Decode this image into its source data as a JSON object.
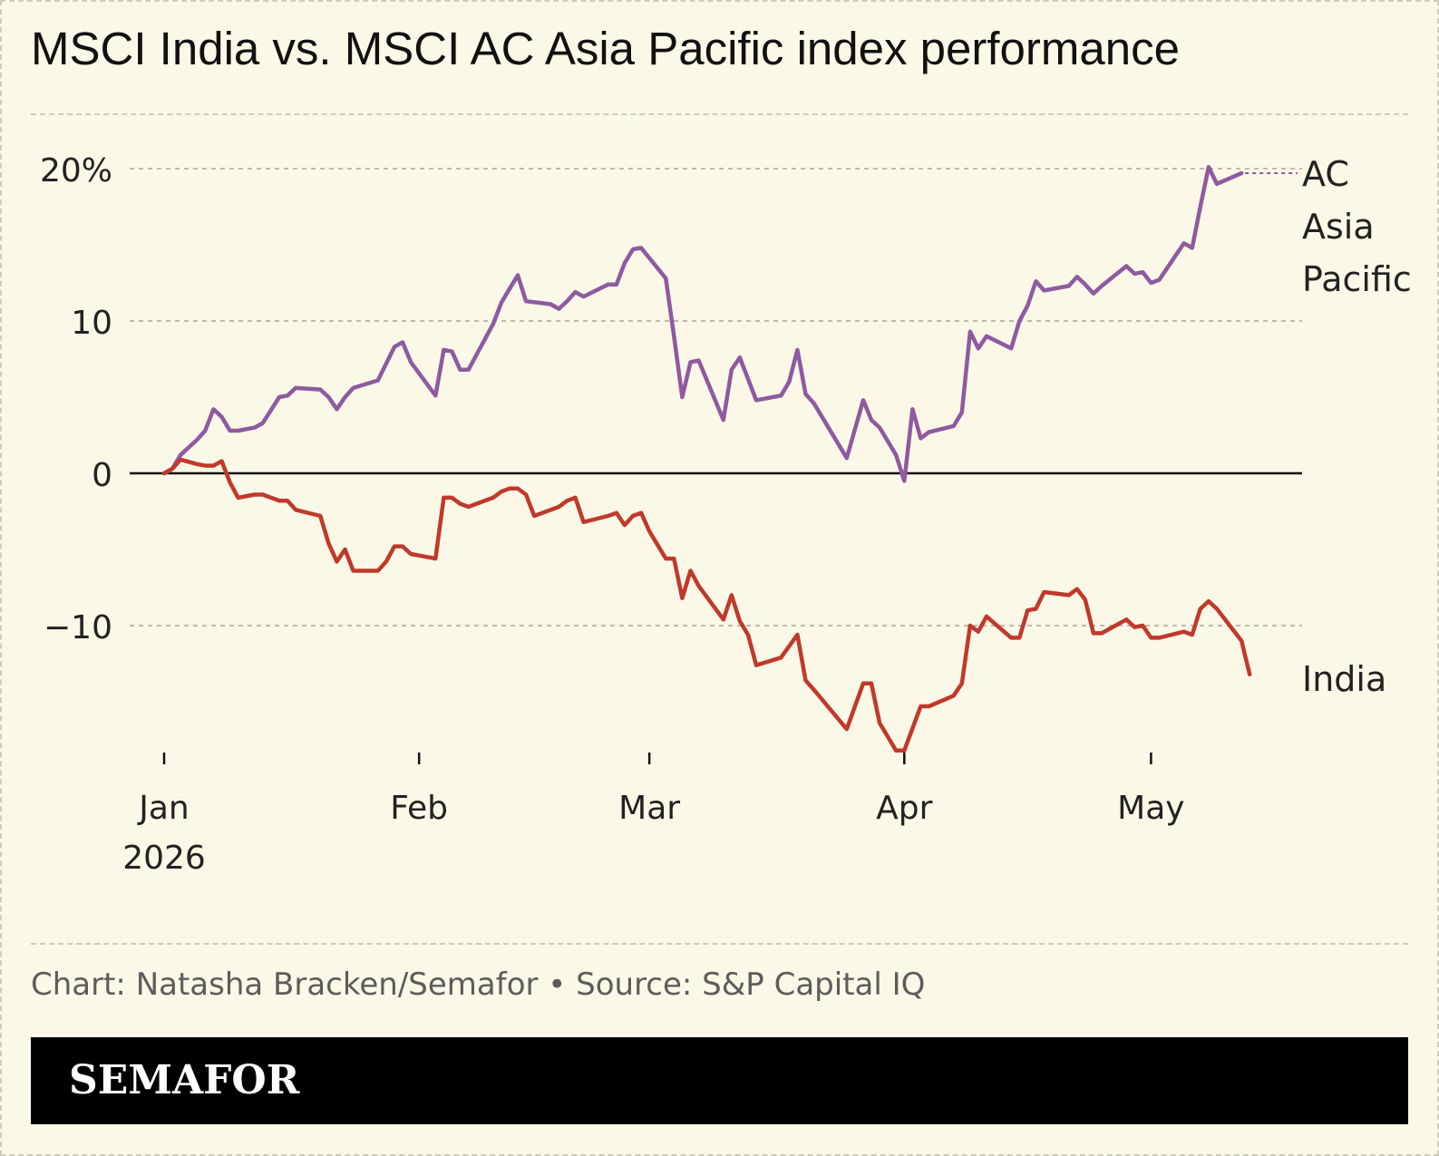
{
  "title": "MSCI India vs. MSCI AC Asia Pacific index performance",
  "footer": {
    "credit": "Chart: Natasha Bracken/Semafor • Source: S&P Capital IQ"
  },
  "brand": {
    "logo_text": "SEMAFOR"
  },
  "colors": {
    "background": "#fbf8e7",
    "india": "#c0392b",
    "ac_asia_pacific": "#8e5aa0"
  },
  "chart_data": {
    "type": "line",
    "title": "MSCI India vs. MSCI AC Asia Pacific index performance",
    "xlabel": "",
    "ylabel": "",
    "x_ticks": [
      {
        "date": "2026-01-01",
        "label": [
          "Jan",
          "2026"
        ]
      },
      {
        "date": "2026-02-01",
        "label": [
          "Feb"
        ]
      },
      {
        "date": "2026-03-01",
        "label": [
          "Mar"
        ]
      },
      {
        "date": "2026-04-01",
        "label": [
          "Apr"
        ]
      },
      {
        "date": "2026-05-01",
        "label": [
          "May"
        ]
      }
    ],
    "y_ticks": [
      {
        "value": 20,
        "label": "20%"
      },
      {
        "value": 10,
        "label": "10"
      },
      {
        "value": 0,
        "label": "0"
      },
      {
        "value": -10,
        "label": "−10"
      }
    ],
    "xlim": [
      "2025-12-31",
      "2026-05-14"
    ],
    "ylim": [
      -20,
      22
    ],
    "grid": true,
    "zero_line": true,
    "series": [
      {
        "name": "AC Asia Pacific",
        "color": "#8e5aa0",
        "label": [
          "AC",
          "Asia",
          "Pacific"
        ],
        "points": [
          [
            "2026-01-01",
            0.0
          ],
          [
            "2026-01-02",
            0.3
          ],
          [
            "2026-01-03",
            1.2
          ],
          [
            "2026-01-05",
            2.2
          ],
          [
            "2026-01-06",
            2.8
          ],
          [
            "2026-01-07",
            4.2
          ],
          [
            "2026-01-08",
            3.7
          ],
          [
            "2026-01-09",
            2.8
          ],
          [
            "2026-01-10",
            2.8
          ],
          [
            "2026-01-12",
            3.0
          ],
          [
            "2026-01-13",
            3.3
          ],
          [
            "2026-01-15",
            5.0
          ],
          [
            "2026-01-16",
            5.1
          ],
          [
            "2026-01-17",
            5.6
          ],
          [
            "2026-01-20",
            5.5
          ],
          [
            "2026-01-21",
            5.0
          ],
          [
            "2026-01-22",
            4.2
          ],
          [
            "2026-01-23",
            5.0
          ],
          [
            "2026-01-24",
            5.6
          ],
          [
            "2026-01-27",
            6.1
          ],
          [
            "2026-01-28",
            7.2
          ],
          [
            "2026-01-29",
            8.3
          ],
          [
            "2026-01-30",
            8.6
          ],
          [
            "2026-01-31",
            7.3
          ],
          [
            "2026-02-03",
            5.1
          ],
          [
            "2026-02-04",
            8.1
          ],
          [
            "2026-02-05",
            8.0
          ],
          [
            "2026-02-06",
            6.8
          ],
          [
            "2026-02-07",
            6.8
          ],
          [
            "2026-02-10",
            9.8
          ],
          [
            "2026-02-11",
            11.2
          ],
          [
            "2026-02-12",
            12.1
          ],
          [
            "2026-02-13",
            13.0
          ],
          [
            "2026-02-14",
            11.3
          ],
          [
            "2026-02-17",
            11.1
          ],
          [
            "2026-02-18",
            10.8
          ],
          [
            "2026-02-19",
            11.3
          ],
          [
            "2026-02-20",
            11.9
          ],
          [
            "2026-02-21",
            11.6
          ],
          [
            "2026-02-24",
            12.4
          ],
          [
            "2026-02-25",
            12.4
          ],
          [
            "2026-02-26",
            13.8
          ],
          [
            "2026-02-27",
            14.7
          ],
          [
            "2026-02-28",
            14.8
          ],
          [
            "2026-03-03",
            12.8
          ],
          [
            "2026-03-04",
            9.0
          ],
          [
            "2026-03-05",
            5.0
          ],
          [
            "2026-03-06",
            7.3
          ],
          [
            "2026-03-07",
            7.4
          ],
          [
            "2026-03-10",
            3.5
          ],
          [
            "2026-03-11",
            6.8
          ],
          [
            "2026-03-12",
            7.6
          ],
          [
            "2026-03-14",
            4.8
          ],
          [
            "2026-03-17",
            5.1
          ],
          [
            "2026-03-18",
            6.0
          ],
          [
            "2026-03-19",
            8.1
          ],
          [
            "2026-03-20",
            5.2
          ],
          [
            "2026-03-21",
            4.6
          ],
          [
            "2026-03-25",
            1.0
          ],
          [
            "2026-03-27",
            4.8
          ],
          [
            "2026-03-28",
            3.5
          ],
          [
            "2026-03-29",
            3.0
          ],
          [
            "2026-03-31",
            1.2
          ],
          [
            "2026-04-01",
            -0.5
          ],
          [
            "2026-04-02",
            4.2
          ],
          [
            "2026-04-03",
            2.3
          ],
          [
            "2026-04-04",
            2.7
          ],
          [
            "2026-04-07",
            3.1
          ],
          [
            "2026-04-08",
            4.0
          ],
          [
            "2026-04-09",
            9.3
          ],
          [
            "2026-04-10",
            8.2
          ],
          [
            "2026-04-11",
            9.0
          ],
          [
            "2026-04-14",
            8.2
          ],
          [
            "2026-04-15",
            10.0
          ],
          [
            "2026-04-16",
            11.0
          ],
          [
            "2026-04-17",
            12.6
          ],
          [
            "2026-04-18",
            12.0
          ],
          [
            "2026-04-21",
            12.3
          ],
          [
            "2026-04-22",
            12.9
          ],
          [
            "2026-04-23",
            12.4
          ],
          [
            "2026-04-24",
            11.8
          ],
          [
            "2026-04-25",
            12.3
          ],
          [
            "2026-04-28",
            13.6
          ],
          [
            "2026-04-29",
            13.1
          ],
          [
            "2026-04-30",
            13.2
          ],
          [
            "2026-05-01",
            12.5
          ],
          [
            "2026-05-02",
            12.7
          ],
          [
            "2026-05-05",
            15.1
          ],
          [
            "2026-05-06",
            14.8
          ],
          [
            "2026-05-07",
            17.5
          ],
          [
            "2026-05-08",
            20.1
          ],
          [
            "2026-05-09",
            19.0
          ],
          [
            "2026-05-12",
            19.7
          ]
        ]
      },
      {
        "name": "India",
        "color": "#c0392b",
        "label": [
          "India"
        ],
        "points": [
          [
            "2026-01-01",
            0.0
          ],
          [
            "2026-01-02",
            0.3
          ],
          [
            "2026-01-03",
            0.9
          ],
          [
            "2026-01-05",
            0.6
          ],
          [
            "2026-01-06",
            0.5
          ],
          [
            "2026-01-07",
            0.5
          ],
          [
            "2026-01-08",
            0.8
          ],
          [
            "2026-01-09",
            -0.6
          ],
          [
            "2026-01-10",
            -1.6
          ],
          [
            "2026-01-12",
            -1.4
          ],
          [
            "2026-01-13",
            -1.4
          ],
          [
            "2026-01-14",
            -1.6
          ],
          [
            "2026-01-15",
            -1.8
          ],
          [
            "2026-01-16",
            -1.8
          ],
          [
            "2026-01-17",
            -2.4
          ],
          [
            "2026-01-20",
            -2.8
          ],
          [
            "2026-01-21",
            -4.6
          ],
          [
            "2026-01-22",
            -5.8
          ],
          [
            "2026-01-23",
            -5.0
          ],
          [
            "2026-01-24",
            -6.4
          ],
          [
            "2026-01-27",
            -6.4
          ],
          [
            "2026-01-28",
            -5.8
          ],
          [
            "2026-01-29",
            -4.8
          ],
          [
            "2026-01-30",
            -4.8
          ],
          [
            "2026-01-31",
            -5.3
          ],
          [
            "2026-02-03",
            -5.6
          ],
          [
            "2026-02-04",
            -1.6
          ],
          [
            "2026-02-05",
            -1.6
          ],
          [
            "2026-02-06",
            -2.0
          ],
          [
            "2026-02-07",
            -2.2
          ],
          [
            "2026-02-10",
            -1.6
          ],
          [
            "2026-02-11",
            -1.2
          ],
          [
            "2026-02-12",
            -1.0
          ],
          [
            "2026-02-13",
            -1.0
          ],
          [
            "2026-02-14",
            -1.4
          ],
          [
            "2026-02-15",
            -2.8
          ],
          [
            "2026-02-18",
            -2.2
          ],
          [
            "2026-02-19",
            -1.8
          ],
          [
            "2026-02-20",
            -1.6
          ],
          [
            "2026-02-21",
            -3.2
          ],
          [
            "2026-02-24",
            -2.8
          ],
          [
            "2026-02-25",
            -2.6
          ],
          [
            "2026-02-26",
            -3.4
          ],
          [
            "2026-02-27",
            -2.8
          ],
          [
            "2026-02-28",
            -2.6
          ],
          [
            "2026-03-01",
            -3.8
          ],
          [
            "2026-03-03",
            -5.6
          ],
          [
            "2026-03-04",
            -5.6
          ],
          [
            "2026-03-05",
            -8.2
          ],
          [
            "2026-03-06",
            -6.4
          ],
          [
            "2026-03-07",
            -7.4
          ],
          [
            "2026-03-10",
            -9.6
          ],
          [
            "2026-03-11",
            -8.0
          ],
          [
            "2026-03-12",
            -9.7
          ],
          [
            "2026-03-13",
            -10.6
          ],
          [
            "2026-03-14",
            -12.6
          ],
          [
            "2026-03-17",
            -12.1
          ],
          [
            "2026-03-19",
            -10.6
          ],
          [
            "2026-03-20",
            -13.6
          ],
          [
            "2026-03-21",
            -14.2
          ],
          [
            "2026-03-25",
            -16.8
          ],
          [
            "2026-03-27",
            -13.8
          ],
          [
            "2026-03-28",
            -13.8
          ],
          [
            "2026-03-29",
            -16.4
          ],
          [
            "2026-03-31",
            -18.2
          ],
          [
            "2026-04-01",
            -18.2
          ],
          [
            "2026-04-03",
            -15.3
          ],
          [
            "2026-04-04",
            -15.3
          ],
          [
            "2026-04-07",
            -14.6
          ],
          [
            "2026-04-08",
            -13.8
          ],
          [
            "2026-04-09",
            -10.0
          ],
          [
            "2026-04-10",
            -10.4
          ],
          [
            "2026-04-11",
            -9.4
          ],
          [
            "2026-04-14",
            -10.8
          ],
          [
            "2026-04-15",
            -10.8
          ],
          [
            "2026-04-16",
            -9.0
          ],
          [
            "2026-04-17",
            -8.9
          ],
          [
            "2026-04-18",
            -7.8
          ],
          [
            "2026-04-21",
            -8.0
          ],
          [
            "2026-04-22",
            -7.6
          ],
          [
            "2026-04-23",
            -8.3
          ],
          [
            "2026-04-24",
            -10.5
          ],
          [
            "2026-04-25",
            -10.5
          ],
          [
            "2026-04-28",
            -9.6
          ],
          [
            "2026-04-29",
            -10.1
          ],
          [
            "2026-04-30",
            -10.0
          ],
          [
            "2026-05-01",
            -10.8
          ],
          [
            "2026-05-02",
            -10.8
          ],
          [
            "2026-05-05",
            -10.4
          ],
          [
            "2026-05-06",
            -10.6
          ],
          [
            "2026-05-07",
            -8.9
          ],
          [
            "2026-05-08",
            -8.4
          ],
          [
            "2026-05-09",
            -8.9
          ],
          [
            "2026-05-12",
            -11.0
          ],
          [
            "2026-05-13",
            -13.2
          ]
        ]
      }
    ]
  }
}
